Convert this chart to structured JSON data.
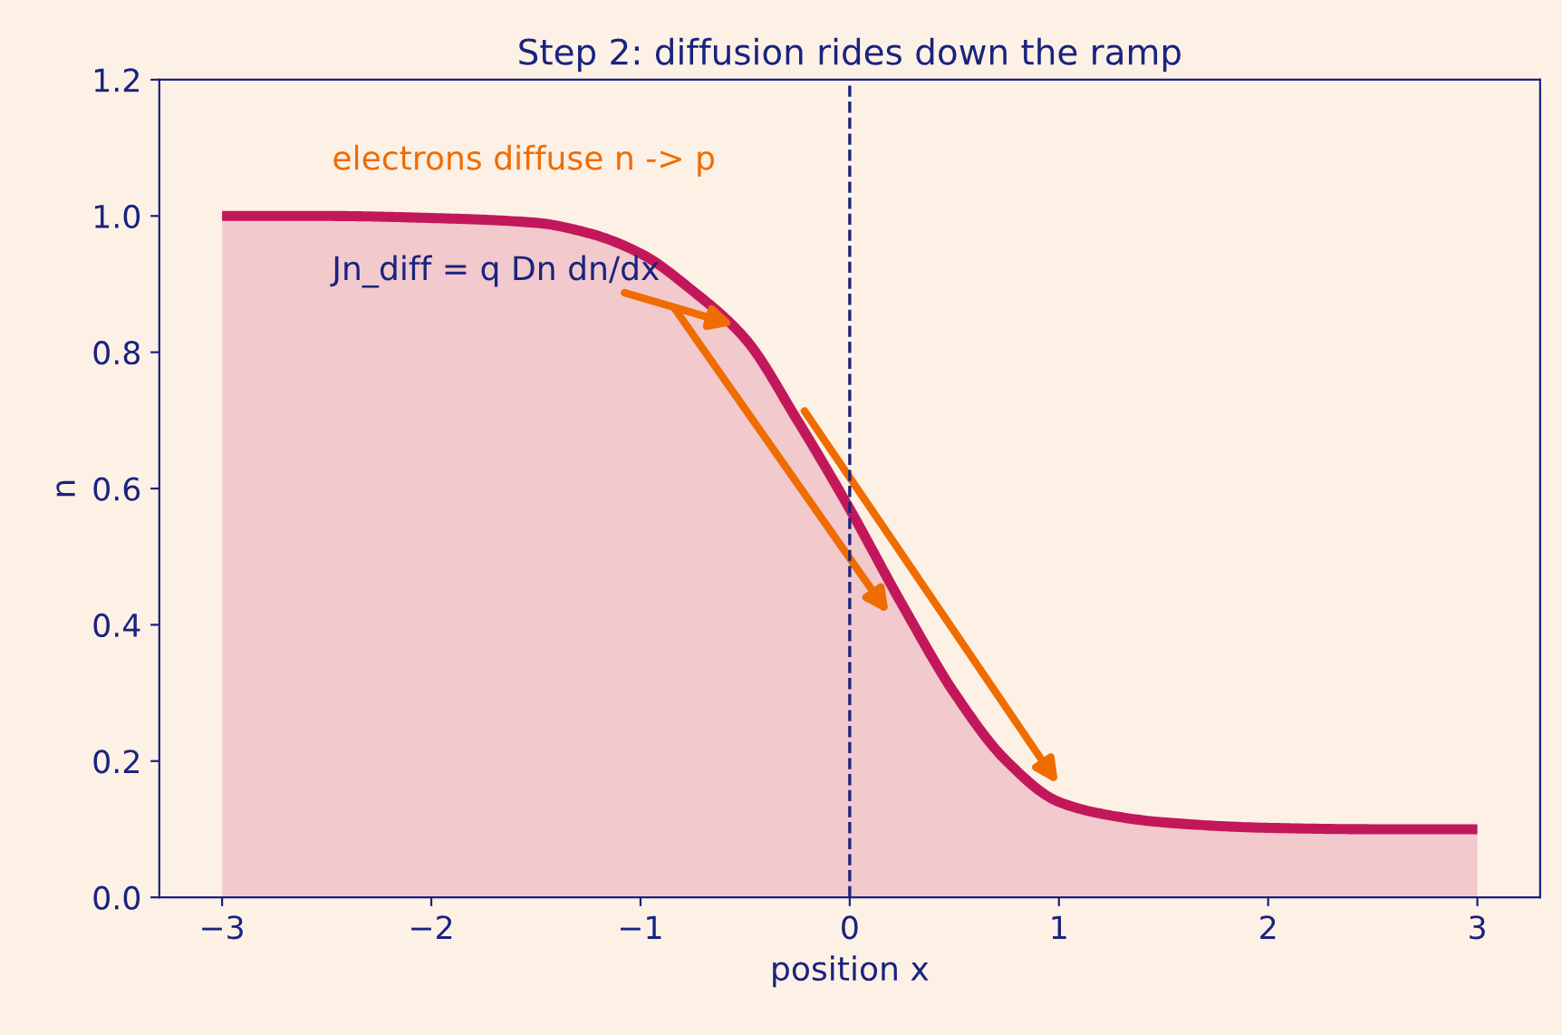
{
  "chart_data": {
    "type": "area",
    "title": "Step 2: diffusion rides down the ramp",
    "xlabel": "position x",
    "ylabel": "n",
    "x": [
      -3,
      -2.5,
      -2,
      -1.5,
      -1.25,
      -1,
      -0.75,
      -0.5,
      -0.25,
      0,
      0.25,
      0.5,
      0.75,
      1,
      1.25,
      1.5,
      2,
      2.5,
      3
    ],
    "series": [
      {
        "color": "#c2185b",
        "values": [
          1.0,
          1.0,
          0.997,
          0.99,
          0.975,
          0.945,
          0.89,
          0.82,
          0.7,
          0.57,
          0.43,
          0.3,
          0.2,
          0.14,
          0.12,
          0.11,
          0.102,
          0.1,
          0.1
        ]
      }
    ],
    "xlim": [
      -3.3,
      3.3
    ],
    "ylim": [
      0,
      1.2
    ],
    "xticks": [
      {
        "value": -3,
        "label": "−3"
      },
      {
        "value": -2,
        "label": "−2"
      },
      {
        "value": -1,
        "label": "−1"
      },
      0,
      1,
      2,
      3
    ],
    "yticks": [
      {
        "value": 0,
        "label": "0.0"
      },
      {
        "value": 0.2,
        "label": "0.2"
      },
      {
        "value": 0.4,
        "label": "0.4"
      },
      {
        "value": 0.6,
        "label": "0.6"
      },
      {
        "value": 0.8,
        "label": "0.8"
      },
      {
        "value": 1,
        "label": "1.0"
      },
      {
        "value": 1.2,
        "label": "1.2"
      }
    ],
    "ref_lines": [
      {
        "axis": "x",
        "value": 0,
        "color": "#1a237e",
        "line_style": "dashed"
      }
    ],
    "annotations": [
      "electrons diffuse n -> p",
      {
        "text": "Jn_diff = q Dn dn/dx",
        "x": -0.55,
        "y": 0.84
      }
    ],
    "grid": false,
    "legend": false
  }
}
